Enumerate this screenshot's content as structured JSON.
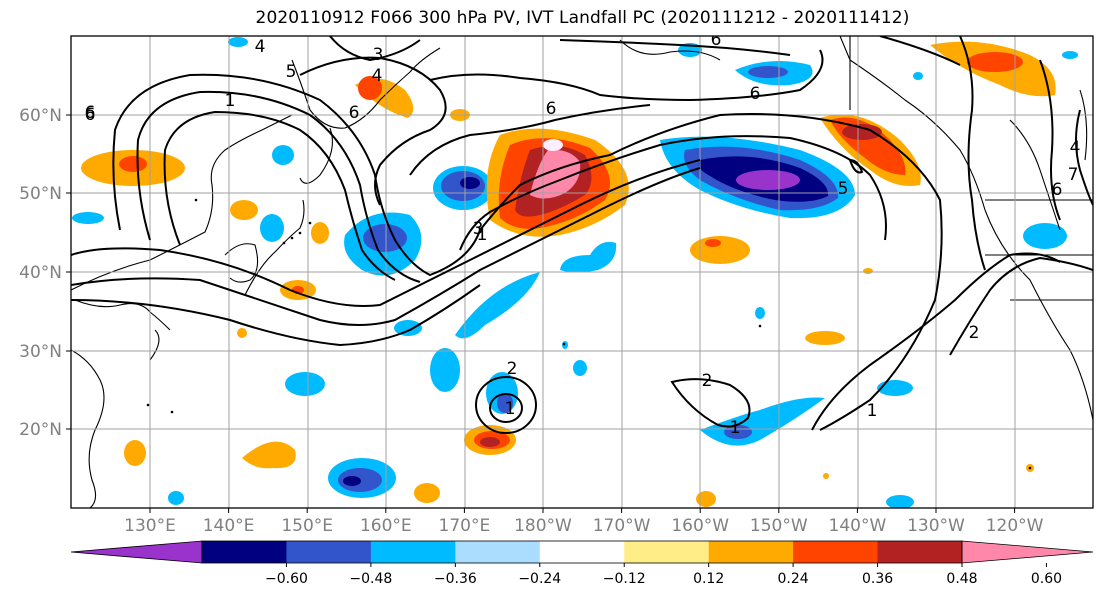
{
  "title": "2020110912 F066 300 hPa PV, IVT Landfall PC (2020111212 - 2020111412)",
  "map": {
    "lat_ticks": [
      "60°N",
      "50°N",
      "40°N",
      "30°N",
      "20°N"
    ],
    "lon_ticks": [
      "130°E",
      "140°E",
      "150°E",
      "160°E",
      "170°E",
      "180°W",
      "170°W",
      "160°W",
      "150°W",
      "140°W",
      "130°W",
      "120°W"
    ],
    "grid": true,
    "contour_color": "#000000",
    "contour_labels": [
      "4",
      "3",
      "5",
      "4",
      "6",
      "6",
      "1",
      "6",
      "6",
      "6",
      "5",
      "7",
      "4",
      "3",
      "1",
      "2",
      "1",
      "2",
      "1",
      "2",
      "1",
      "6",
      "6"
    ]
  },
  "colorbar": {
    "colors": [
      "#9933cc",
      "#000080",
      "#3355cc",
      "#00bbff",
      "#aaddff",
      "#ffffff",
      "#ffee88",
      "#ffaa00",
      "#ff4400",
      "#b22222",
      "#ff88aa"
    ],
    "tick_labels": [
      "−0.60",
      "−0.48",
      "−0.36",
      "−0.24",
      "−0.12",
      "0.12",
      "0.24",
      "0.36",
      "0.48",
      "0.60"
    ]
  }
}
